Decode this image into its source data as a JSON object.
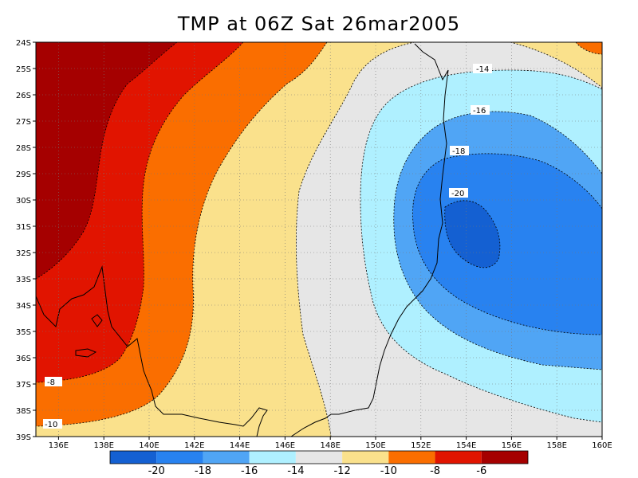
{
  "title": "TMP at 06Z Sat 26mar2005",
  "map": {
    "lon_range": [
      135,
      160
    ],
    "lat_range": [
      -39,
      -24
    ],
    "x_ticks": [
      "136E",
      "138E",
      "140E",
      "142E",
      "144E",
      "146E",
      "148E",
      "150E",
      "152E",
      "154E",
      "156E",
      "158E",
      "160E"
    ],
    "y_ticks": [
      "24S",
      "25S",
      "26S",
      "27S",
      "28S",
      "29S",
      "30S",
      "31S",
      "32S",
      "33S",
      "34S",
      "35S",
      "36S",
      "37S",
      "38S",
      "39S"
    ],
    "contour_labels": [
      "-14",
      "-16",
      "-18",
      "-20",
      "-8",
      "-10"
    ],
    "fill_colors": {
      "lt20": "#1460d2",
      "20_18": "#2882f0",
      "18_16": "#50a5f5",
      "16_14": "#aff0ff",
      "14_12": "#e6e6e6",
      "12_10": "#fae18c",
      "10_8": "#fa6e00",
      "8_6": "#e11400",
      "gt6": "#a50000"
    }
  },
  "colorbar": {
    "labels": [
      "-20",
      "-18",
      "-16",
      "-14",
      "-12",
      "-10",
      "-8",
      "-6"
    ],
    "colors": [
      "#1460d2",
      "#2882f0",
      "#50a5f5",
      "#aff0ff",
      "#e6e6e6",
      "#fae18c",
      "#fa6e00",
      "#e11400",
      "#a50000"
    ]
  }
}
